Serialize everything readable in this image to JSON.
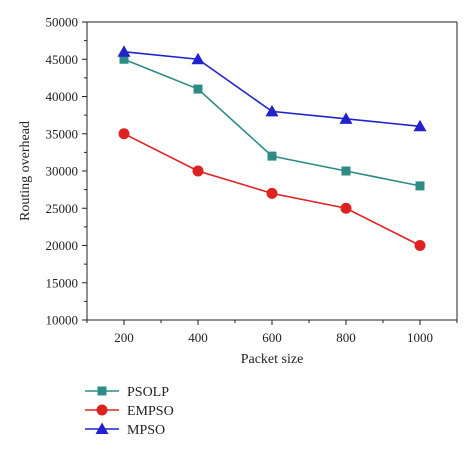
{
  "chart_data": {
    "type": "line",
    "x": [
      200,
      400,
      600,
      800,
      1000
    ],
    "x_tick_labels": [
      "200",
      "400",
      "600",
      "800",
      "1000"
    ],
    "y_tick_labels": [
      "10000",
      "15000",
      "20000",
      "25000",
      "30000",
      "35000",
      "40000",
      "45000",
      "50000"
    ],
    "y_ticks": [
      10000,
      15000,
      20000,
      25000,
      30000,
      35000,
      40000,
      45000,
      50000
    ],
    "xlabel": "Packet size",
    "ylabel": "Routing overhead",
    "xlim": [
      100,
      1100
    ],
    "ylim": [
      10000,
      50000
    ],
    "grid": false,
    "legend_position": "bottom-left",
    "series": [
      {
        "name": "PSOLP",
        "marker": "square",
        "color": "#2e8b86",
        "values": [
          45000,
          41000,
          32000,
          30000,
          28000
        ]
      },
      {
        "name": "EMPSO",
        "marker": "circle",
        "color": "#dd2222",
        "values": [
          35000,
          30000,
          27000,
          25000,
          20000
        ]
      },
      {
        "name": "MPSO",
        "marker": "triangle",
        "color": "#2222cc",
        "values": [
          46000,
          45000,
          38000,
          37000,
          36000
        ]
      }
    ]
  }
}
